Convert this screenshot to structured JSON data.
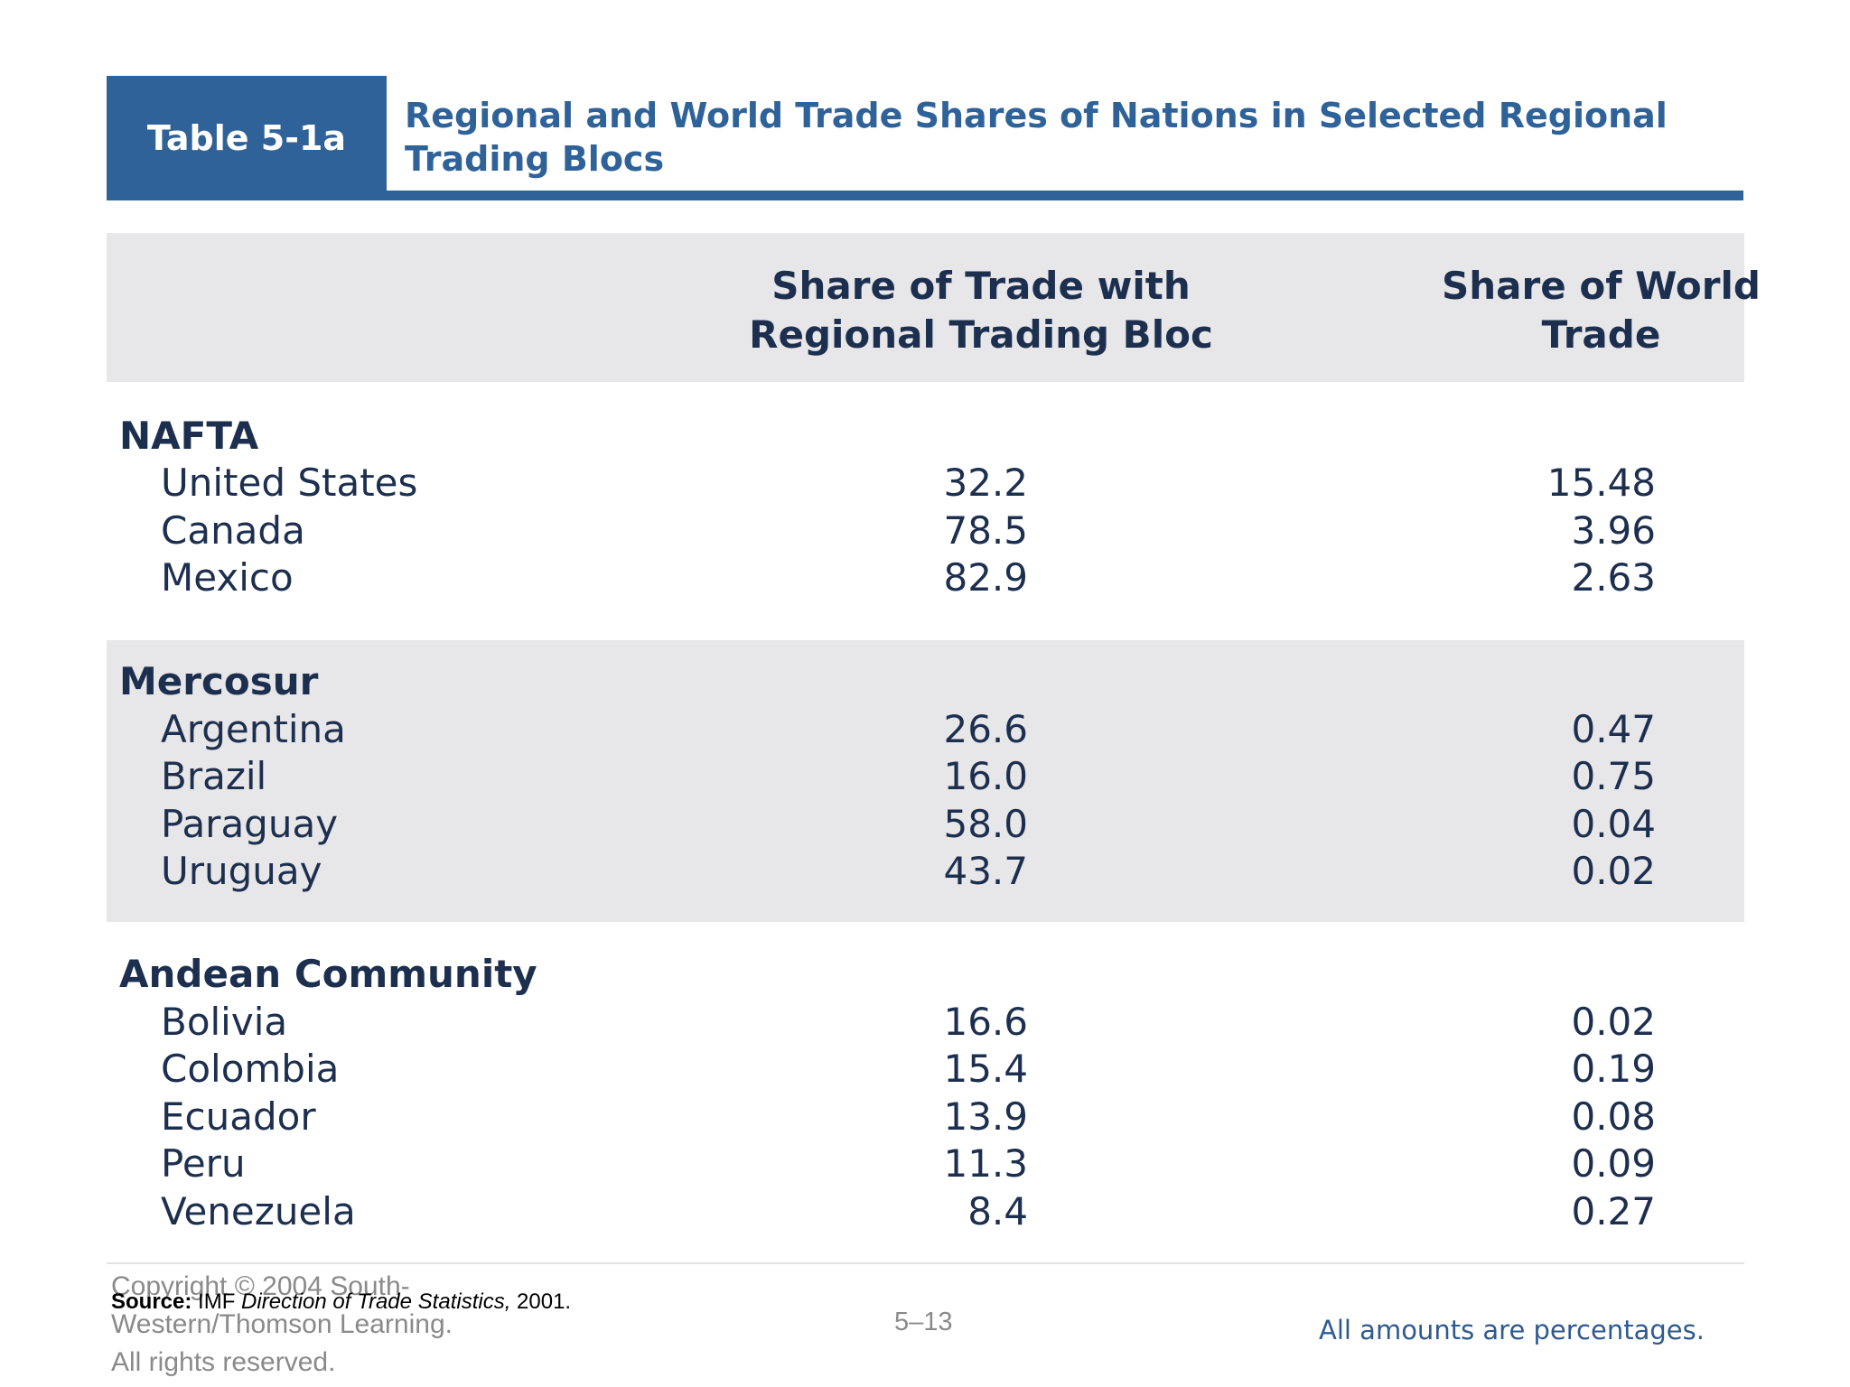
{
  "header": {
    "table_label": "Table 5-1a",
    "title": "Regional and World Trade Shares of Nations in Selected Regional Trading Blocs"
  },
  "columns": {
    "regional": "Share of Trade with Regional Trading Bloc",
    "world": "Share of World Trade"
  },
  "blocs": [
    {
      "name": "NAFTA",
      "rows": [
        {
          "country": "United States",
          "regional": "32.2",
          "world": "15.48"
        },
        {
          "country": "Canada",
          "regional": "78.5",
          "world": "3.96"
        },
        {
          "country": "Mexico",
          "regional": "82.9",
          "world": "2.63"
        }
      ]
    },
    {
      "name": "Mercosur",
      "rows": [
        {
          "country": "Argentina",
          "regional": "26.6",
          "world": "0.47"
        },
        {
          "country": "Brazil",
          "regional": "16.0",
          "world": "0.75"
        },
        {
          "country": "Paraguay",
          "regional": "58.0",
          "world": "0.04"
        },
        {
          "country": "Uruguay",
          "regional": "43.7",
          "world": "0.02"
        }
      ]
    },
    {
      "name": "Andean Community",
      "rows": [
        {
          "country": "Bolivia",
          "regional": "16.6",
          "world": "0.02"
        },
        {
          "country": "Colombia",
          "regional": "15.4",
          "world": "0.19"
        },
        {
          "country": "Ecuador",
          "regional": "13.9",
          "world": "0.08"
        },
        {
          "country": "Peru",
          "regional": "11.3",
          "world": "0.09"
        },
        {
          "country": "Venezuela",
          "regional": "8.4",
          "world": "0.27"
        }
      ]
    }
  ],
  "footer": {
    "copyright_line1": "Copyright © 2004 South-",
    "copyright_line2": "Western/Thomson Learning.",
    "copyright_line3": "All rights reserved.",
    "source_label": "Source:",
    "source_org": "IMF",
    "source_pub": "Direction of Trade Statistics,",
    "source_year": "2001.",
    "page_number": "5–13",
    "note": "All amounts are percentages."
  }
}
